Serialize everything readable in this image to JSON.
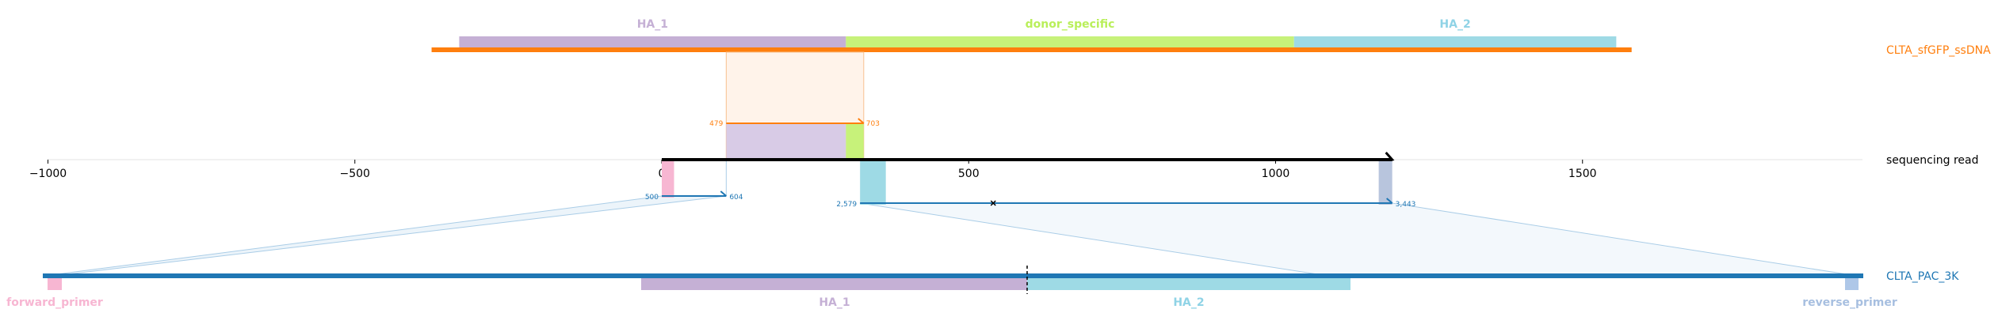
{
  "axis": {
    "ticks": [
      {
        "value": -1000,
        "label": "−1000"
      },
      {
        "value": -500,
        "label": "−500"
      },
      {
        "value": 0,
        "label": "0"
      },
      {
        "value": 500,
        "label": "500"
      },
      {
        "value": 1000,
        "label": "1000"
      },
      {
        "value": 1500,
        "label": "1500"
      }
    ],
    "range": [
      -1000,
      1900
    ]
  },
  "read": {
    "label": "sequencing read",
    "start": 0,
    "end": 1190,
    "color": "#000000"
  },
  "donor": {
    "label": "CLTA_sfGFP_ssDNA",
    "color": "#ff7f0e",
    "start_read_coord": -375,
    "end_read_coord": 1580,
    "features": [
      {
        "name": "HA_1",
        "start": -330,
        "end": 300,
        "color": "#c5b0d5",
        "label_color": "#c5b0d5"
      },
      {
        "name": "donor_specific",
        "start": 300,
        "end": 1030,
        "color": "#c7f27a",
        "label_color": "#b9ef5a"
      },
      {
        "name": "HA_2",
        "start": 1030,
        "end": 1555,
        "color": "#9edae5",
        "label_color": "#8fd3e6"
      }
    ],
    "alignment": {
      "read_start": 105,
      "read_end": 329,
      "ref_start_label": "479",
      "ref_end_label": "703"
    }
  },
  "genome": {
    "label": "CLTA_PAC_3K",
    "color": "#1f77b4",
    "cut_site": 1000,
    "features": [
      {
        "name": "forward_primer",
        "color": "#f7b6d2",
        "label_color": "#f7b6d2"
      },
      {
        "name": "HA_1",
        "color": "#c5b0d5",
        "label_color": "#c5b0d5"
      },
      {
        "name": "HA_2",
        "color": "#9edae5",
        "label_color": "#8fd3e6"
      },
      {
        "name": "reverse_primer",
        "color": "#aec7e8",
        "label_color": "#a7bfe0"
      }
    ],
    "alignments": [
      {
        "read_start": 0,
        "read_end": 105,
        "ref_start_label": "500",
        "ref_end_label": "604"
      },
      {
        "read_start": 323,
        "read_end": 1190,
        "ref_start_label": "2,579",
        "ref_end_label": "3,443",
        "mismatch_at": 540
      }
    ]
  }
}
